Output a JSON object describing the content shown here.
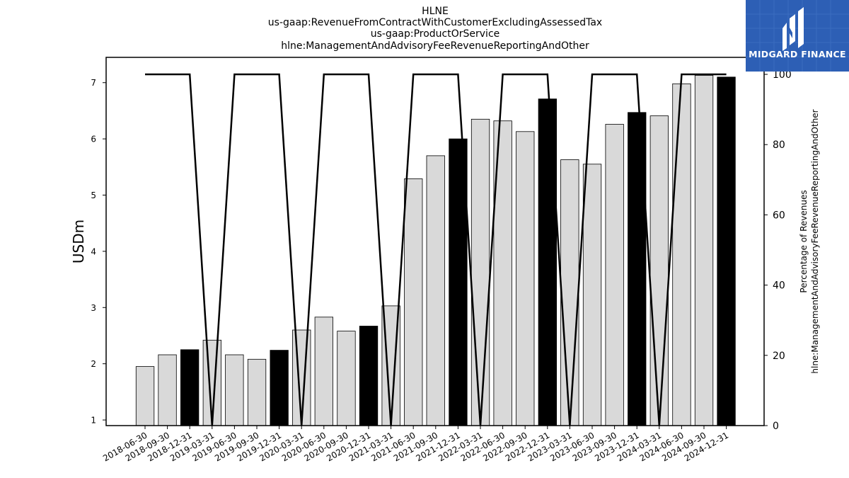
{
  "logo": {
    "text": "MIDGARD FINANCE",
    "bg_color": "#2d5fb5",
    "icon": "midgard-m-icon"
  },
  "chart_data": {
    "type": "bar",
    "title_lines": [
      "HLNE",
      "us-gaap:RevenueFromContractWithCustomerExcludingAssessedTax",
      "us-gaap:ProductOrService",
      "hlne:ManagementAndAdvisoryFeeRevenueReportingAndOther"
    ],
    "ylabel": "USDm",
    "y2label_lines": [
      "Percentage of Revenues",
      "hlne:ManagementAndAdvisoryFeeRevenueReportingAndOther"
    ],
    "ylim": [
      0.9,
      7.45
    ],
    "y2lim": [
      0,
      100
    ],
    "yticks": [
      1,
      2,
      3,
      4,
      5,
      6,
      7
    ],
    "y2ticks": [
      0,
      20,
      40,
      60,
      80,
      100
    ],
    "bar_colors": {
      "normal": "#d9d9d9",
      "highlight": "#000000",
      "edge": "#000000"
    },
    "line_color": "#000000",
    "categories": [
      "2018-06-30",
      "2018-09-30",
      "2018-12-31",
      "2019-03-31",
      "2019-06-30",
      "2019-09-30",
      "2019-12-31",
      "2020-03-31",
      "2020-06-30",
      "2020-09-30",
      "2020-12-31",
      "2021-03-31",
      "2021-06-30",
      "2021-09-30",
      "2021-12-31",
      "2022-03-31",
      "2022-06-30",
      "2022-09-30",
      "2022-12-31",
      "2023-03-31",
      "2023-06-30",
      "2023-09-30",
      "2023-12-31",
      "2024-03-31",
      "2024-06-30",
      "2024-09-30",
      "2024-12-31"
    ],
    "values": [
      1.95,
      2.16,
      2.25,
      2.42,
      2.16,
      2.08,
      2.24,
      2.6,
      2.83,
      2.58,
      2.67,
      3.03,
      5.29,
      5.7,
      6.0,
      6.35,
      6.32,
      6.13,
      6.71,
      5.63,
      5.55,
      6.26,
      6.47,
      6.41,
      6.98,
      7.13,
      7.1
    ],
    "highlighted": [
      false,
      false,
      true,
      false,
      false,
      false,
      true,
      false,
      false,
      false,
      true,
      false,
      false,
      false,
      true,
      false,
      false,
      false,
      true,
      false,
      false,
      false,
      true,
      false,
      false,
      false,
      true
    ],
    "line_values": [
      100,
      100,
      100,
      0,
      100,
      100,
      100,
      0,
      100,
      100,
      100,
      0,
      100,
      100,
      100,
      0,
      100,
      100,
      100,
      0,
      100,
      100,
      100,
      0,
      100,
      100,
      100
    ]
  }
}
